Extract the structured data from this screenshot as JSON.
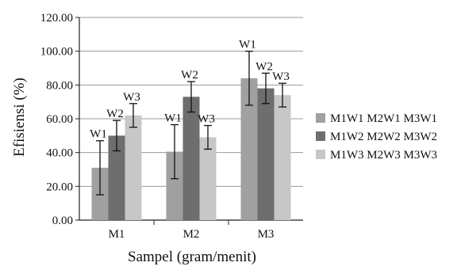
{
  "chart_data": {
    "type": "bar",
    "title": "",
    "xlabel": "Sampel (gram/menit)",
    "ylabel": "Efisiensi (%)",
    "ylim": [
      0,
      120
    ],
    "yticks": [
      "0.00",
      "20.00",
      "40.00",
      "60.00",
      "80.00",
      "100.00",
      "120.00"
    ],
    "categories": [
      "M1",
      "M2",
      "M3"
    ],
    "series": [
      {
        "name": "M1W1 M2W1 M3W1",
        "color": "#a0a0a0",
        "values": [
          31,
          40.5,
          84
        ],
        "error": [
          16,
          16,
          16
        ],
        "bar_labels": [
          "W1",
          "W1",
          "W1"
        ]
      },
      {
        "name": "M1W2 M2W2 M3W2",
        "color": "#6e6e6e",
        "values": [
          50,
          73,
          78
        ],
        "error": [
          9,
          9,
          9
        ],
        "bar_labels": [
          "W2",
          "W2",
          "W2"
        ]
      },
      {
        "name": "M1W3 M2W3 M3W3",
        "color": "#c7c7c7",
        "values": [
          62,
          49,
          74
        ],
        "error": [
          7,
          7,
          7
        ],
        "bar_labels": [
          "W3",
          "W3",
          "W3"
        ]
      }
    ],
    "grid": true,
    "legend_position": "right"
  }
}
